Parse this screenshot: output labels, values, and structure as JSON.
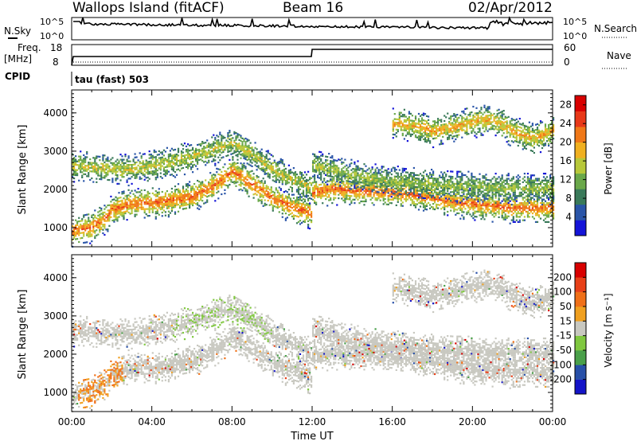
{
  "header": {
    "station": "Wallops Island (fitACF)",
    "beam": "Beam 16",
    "date": "02/Apr/2012"
  },
  "parameter_panels": {
    "nsky_label": "N.Sky",
    "nsky_ticks": [
      "10^5",
      "10^0"
    ],
    "nsearch_label": "N.Search",
    "nsearch_ticks": [
      "10^5",
      "10^0"
    ],
    "freq_label_1": "Freq.",
    "freq_label_2": "[MHz]",
    "freq_ticks": [
      "18",
      "8"
    ],
    "nave_label": "Nave",
    "nave_ticks": [
      "60",
      "0"
    ],
    "cpid_label": "CPID",
    "cpid_text": "tau (fast) 503"
  },
  "chart_data": [
    {
      "type": "heatmap",
      "parameter": "power",
      "ylabel": "Slant Range [km]",
      "xlabel": "",
      "yticks": [
        "1000",
        "2000",
        "3000",
        "4000"
      ],
      "ylim": [
        500,
        4600
      ],
      "xlim": [
        0,
        24
      ],
      "colorbar_label": "Power [dB]",
      "colorbar_ticks": [
        "4",
        "8",
        "12",
        "16",
        "20",
        "24",
        "28"
      ],
      "colorbar_range": [
        0,
        30
      ],
      "colors": [
        "#1414d8",
        "#2a55a8",
        "#3a7a5a",
        "#6aa84a",
        "#b8c83a",
        "#f0b020",
        "#f07818",
        "#e83818",
        "#d80000"
      ],
      "echo_bands": [
        {
          "t": [
            0.0,
            0.5,
            1.0,
            1.5,
            2.0,
            3.0,
            4.0,
            5.0,
            6.0,
            7.0,
            8.0,
            9.0,
            10.0,
            11.0,
            12.0
          ],
          "r": [
            900,
            950,
            1000,
            1150,
            1450,
            1600,
            1620,
            1700,
            1800,
            2050,
            2450,
            2100,
            1750,
            1500,
            1350
          ],
          "strength": 24
        },
        {
          "t": [
            0.0,
            1.0,
            2.0,
            3.0,
            4.0,
            5.0,
            6.0,
            7.0,
            8.0,
            9.0,
            10.0,
            11.0,
            12.0
          ],
          "r": [
            2600,
            2550,
            2500,
            2500,
            2600,
            2700,
            2850,
            3000,
            3200,
            2900,
            2500,
            2200,
            2000
          ],
          "strength": 16
        },
        {
          "t": [
            12.0,
            13.0,
            14.0,
            15.0,
            16.0,
            17.0,
            18.0,
            19.0,
            20.0,
            21.0,
            22.0,
            23.0,
            24.0
          ],
          "r": [
            1900,
            2000,
            1950,
            1950,
            1900,
            1850,
            1750,
            1650,
            1600,
            1550,
            1500,
            1500,
            1500
          ],
          "strength": 24
        },
        {
          "t": [
            12.0,
            13.0,
            14.0,
            15.0,
            16.0,
            17.0,
            18.0,
            19.0,
            20.0,
            21.0,
            22.0,
            23.0,
            24.0
          ],
          "r": [
            2600,
            2500,
            2350,
            2250,
            2200,
            2150,
            2100,
            2050,
            2050,
            2000,
            2000,
            2000,
            2000
          ],
          "strength": 14
        },
        {
          "t": [
            16.0,
            17.0,
            18.0,
            19.0,
            20.0,
            21.0,
            22.0,
            23.0,
            24.0
          ],
          "r": [
            3700,
            3650,
            3500,
            3600,
            3750,
            3800,
            3500,
            3300,
            3500
          ],
          "strength": 20
        }
      ]
    },
    {
      "type": "heatmap",
      "parameter": "velocity",
      "ylabel": "Slant Range [km]",
      "xlabel": "Time UT",
      "yticks": [
        "1000",
        "2000",
        "3000",
        "4000"
      ],
      "ylim": [
        500,
        4600
      ],
      "xlim": [
        0,
        24
      ],
      "xticks": [
        "00:00",
        "04:00",
        "08:00",
        "12:00",
        "16:00",
        "20:00",
        "00:00"
      ],
      "colorbar_label": "Velocity [m s⁻¹]",
      "colorbar_ticks": [
        "200",
        "100",
        "50",
        "15",
        "-15",
        "-50",
        "-100",
        "-200"
      ],
      "colors": [
        "#1414c8",
        "#2850a8",
        "#4aa04a",
        "#80c840",
        "#c8c8c0",
        "#f0a020",
        "#f07018",
        "#e84018",
        "#d80000"
      ]
    }
  ]
}
